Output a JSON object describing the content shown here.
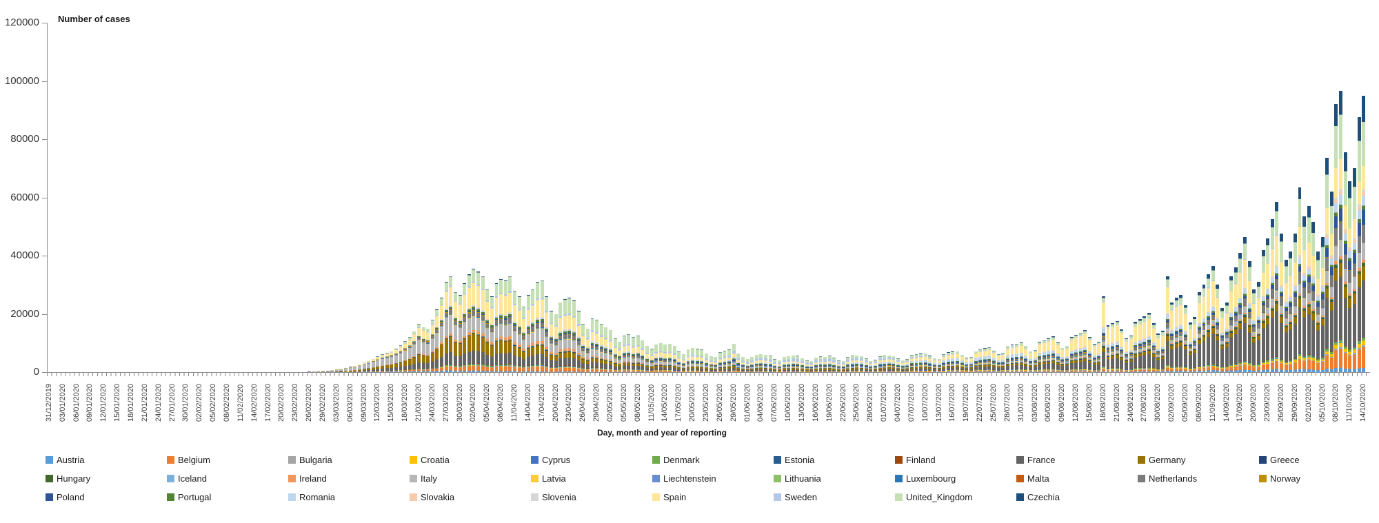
{
  "chart_data": {
    "type": "bar",
    "stacked": true,
    "ylabel": "Number of cases",
    "xlabel": "Day, month and year of reporting",
    "ylim": [
      0,
      120000
    ],
    "y_ticks": [
      0,
      20000,
      40000,
      60000,
      80000,
      100000,
      120000
    ],
    "grid": false,
    "legend_position": "bottom",
    "x_start_date": "31/12/2019",
    "x_end_date": "14/10/2020",
    "n_days": 289,
    "x_label_every_n_days": 3,
    "x_tick_labels": [
      "31/12/2019",
      "03/01/2020",
      "06/01/2020",
      "09/01/2020",
      "12/01/2020",
      "15/01/2020",
      "18/01/2020",
      "21/01/2020",
      "24/01/2020",
      "27/01/2020",
      "30/01/2020",
      "02/02/2020",
      "05/02/2020",
      "08/02/2020",
      "11/02/2020",
      "14/02/2020",
      "17/02/2020",
      "20/02/2020",
      "23/02/2020",
      "26/02/2020",
      "29/02/2020",
      "03/03/2020",
      "06/03/2020",
      "09/03/2020",
      "12/03/2020",
      "15/03/2020",
      "18/03/2020",
      "21/03/2020",
      "24/03/2020",
      "27/03/2020",
      "30/03/2020",
      "02/04/2020",
      "05/04/2020",
      "08/04/2020",
      "11/04/2020",
      "14/04/2020",
      "17/04/2020",
      "20/04/2020",
      "23/04/2020",
      "26/04/2020",
      "29/04/2020",
      "02/05/2020",
      "05/05/2020",
      "08/05/2020",
      "11/05/2020",
      "14/05/2020",
      "17/05/2020",
      "20/05/2020",
      "23/05/2020",
      "26/05/2020",
      "29/05/2020",
      "01/06/2020",
      "04/06/2020",
      "07/06/2020",
      "10/06/2020",
      "13/06/2020",
      "16/06/2020",
      "19/06/2020",
      "22/06/2020",
      "25/06/2020",
      "28/06/2020",
      "01/07/2020",
      "04/07/2020",
      "07/07/2020",
      "10/07/2020",
      "13/07/2020",
      "16/07/2020",
      "19/07/2020",
      "22/07/2020",
      "25/07/2020",
      "28/07/2020",
      "31/07/2020",
      "03/08/2020",
      "06/08/2020",
      "09/08/2020",
      "12/08/2020",
      "15/08/2020",
      "18/08/2020",
      "21/08/2020",
      "24/08/2020",
      "27/08/2020",
      "30/08/2020",
      "02/09/2020",
      "05/09/2020",
      "08/09/2020",
      "11/09/2020",
      "14/09/2020",
      "17/09/2020",
      "20/09/2020",
      "23/09/2020",
      "26/09/2020",
      "29/09/2020",
      "02/10/2020",
      "05/10/2020",
      "08/10/2020",
      "11/10/2020",
      "14/10/2020"
    ],
    "series_order": [
      "Austria",
      "Belgium",
      "Bulgaria",
      "Croatia",
      "Cyprus",
      "Denmark",
      "Estonia",
      "Finland",
      "France",
      "Germany",
      "Greece",
      "Hungary",
      "Iceland",
      "Ireland",
      "Italy",
      "Latvia",
      "Liechtenstein",
      "Lithuania",
      "Luxembourg",
      "Malta",
      "Netherlands",
      "Norway",
      "Poland",
      "Portugal",
      "Romania",
      "Slovakia",
      "Slovenia",
      "Spain",
      "Sweden",
      "United_Kingdom",
      "Czechia"
    ],
    "series_colors": {
      "Austria": "#5B9BD5",
      "Belgium": "#ED7D31",
      "Bulgaria": "#A5A5A5",
      "Croatia": "#FFC000",
      "Cyprus": "#4472C4",
      "Denmark": "#70AD47",
      "Estonia": "#255E91",
      "Finland": "#9E480E",
      "France": "#636363",
      "Germany": "#997300",
      "Greece": "#264478",
      "Hungary": "#43682B",
      "Iceland": "#7CAFDD",
      "Ireland": "#F1975A",
      "Italy": "#B7B7B7",
      "Latvia": "#FFCD33",
      "Liechtenstein": "#698ED0",
      "Lithuania": "#8CC168",
      "Luxembourg": "#2E75B6",
      "Malta": "#C55A11",
      "Netherlands": "#7B7B7B",
      "Norway": "#BF8F00",
      "Poland": "#2F5597",
      "Portugal": "#548235",
      "Romania": "#BDD7EE",
      "Slovakia": "#F8CBAD",
      "Slovenia": "#D6D6D6",
      "Spain": "#FFE699",
      "Sweden": "#B4C7E7",
      "United_Kingdom": "#C5E0B4",
      "Czechia": "#1F4E79"
    },
    "daily_totals": [
      0,
      0,
      0,
      0,
      0,
      0,
      0,
      0,
      0,
      0,
      0,
      0,
      0,
      0,
      0,
      0,
      0,
      0,
      0,
      0,
      0,
      0,
      0,
      0,
      0,
      0,
      0,
      0,
      0,
      0,
      0,
      0,
      0,
      0,
      0,
      0,
      0,
      0,
      0,
      0,
      0,
      0,
      0,
      0,
      0,
      0,
      0,
      0,
      0,
      0,
      0,
      0,
      0,
      0,
      30,
      60,
      100,
      160,
      230,
      330,
      430,
      560,
      700,
      900,
      1150,
      1450,
      1800,
      2200,
      2700,
      3300,
      3900,
      4600,
      5400,
      6100,
      6600,
      7200,
      8000,
      9200,
      10600,
      12000,
      14000,
      16500,
      15500,
      15000,
      18000,
      21500,
      25500,
      31000,
      33000,
      27500,
      26500,
      30500,
      33500,
      35500,
      34500,
      33000,
      28500,
      26000,
      30500,
      32000,
      31500,
      33000,
      28000,
      26000,
      22500,
      26500,
      28500,
      31000,
      31500,
      26000,
      21000,
      20000,
      24000,
      25000,
      25500,
      24500,
      21000,
      16500,
      15000,
      18500,
      18000,
      16500,
      15500,
      14500,
      11500,
      10500,
      12500,
      13000,
      12000,
      12500,
      11000,
      9000,
      8000,
      9500,
      10000,
      9500,
      9800,
      9000,
      7000,
      6200,
      7800,
      8300,
      8000,
      7700,
      6500,
      5500,
      5200,
      6800,
      7300,
      7800,
      9800,
      6500,
      5200,
      4500,
      5200,
      6000,
      6200,
      6000,
      5600,
      4400,
      4000,
      5300,
      5500,
      5800,
      5600,
      4800,
      4000,
      3800,
      5000,
      5400,
      5300,
      5600,
      4900,
      4000,
      3800,
      5200,
      5600,
      5800,
      5500,
      4700,
      3900,
      4200,
      5400,
      5600,
      5800,
      5500,
      4700,
      4100,
      4400,
      5900,
      6100,
      6300,
      6500,
      5600,
      4800,
      4600,
      6200,
      6800,
      7000,
      7200,
      6000,
      5000,
      5200,
      7200,
      7800,
      8200,
      8600,
      7400,
      6200,
      6600,
      8800,
      9400,
      9800,
      10200,
      8800,
      7200,
      7600,
      10400,
      11000,
      11600,
      12200,
      10200,
      8400,
      8800,
      12000,
      12800,
      13600,
      14400,
      12000,
      9600,
      10400,
      26000,
      16000,
      16800,
      17600,
      14600,
      11600,
      12600,
      17200,
      18200,
      19200,
      20400,
      16800,
      13200,
      14200,
      33000,
      24000,
      25500,
      26500,
      23000,
      17000,
      19000,
      27500,
      30000,
      33500,
      36500,
      30000,
      22000,
      24000,
      33000,
      36000,
      41000,
      46500,
      38000,
      28500,
      31000,
      42000,
      46000,
      52500,
      58500,
      47500,
      38500,
      41500,
      47500,
      63500,
      53500,
      57000,
      51500,
      41500,
      46500,
      73500,
      62000,
      92000,
      96500,
      75500,
      65500,
      70000,
      87500,
      95000
    ],
    "composition_anchors": [
      {
        "day": 54,
        "weights": {
          "Italy": 0.72,
          "France": 0.08,
          "Germany": 0.05,
          "Spain": 0.04,
          "United_Kingdom": 0.03,
          "Austria": 0.01,
          "Belgium": 0.01,
          "Netherlands": 0.01,
          "Norway": 0.01,
          "Denmark": 0.01,
          "Sweden": 0.01,
          "Greece": 0.01
        }
      },
      {
        "day": 75,
        "weights": {
          "Italy": 0.35,
          "Germany": 0.16,
          "Spain": 0.14,
          "France": 0.13,
          "United_Kingdom": 0.04,
          "Netherlands": 0.035,
          "Belgium": 0.03,
          "Austria": 0.025,
          "Norway": 0.015,
          "Denmark": 0.01,
          "Sweden": 0.01,
          "Portugal": 0.01,
          "Ireland": 0.01,
          "Luxembourg": 0.005,
          "Greece": 0.005,
          "Czechia": 0.005
        }
      },
      {
        "day": 93,
        "weights": {
          "Spain": 0.215,
          "Germany": 0.165,
          "Italy": 0.13,
          "France": 0.125,
          "United_Kingdom": 0.115,
          "Belgium": 0.045,
          "Netherlands": 0.04,
          "Ireland": 0.025,
          "Portugal": 0.02,
          "Austria": 0.015,
          "Sweden": 0.015,
          "Poland": 0.01,
          "Norway": 0.008,
          "Denmark": 0.008,
          "Romania": 0.008,
          "Czechia": 0.008,
          "Luxembourg": 0.004
        }
      },
      {
        "day": 110,
        "weights": {
          "United_Kingdom": 0.19,
          "Spain": 0.19,
          "Italy": 0.125,
          "France": 0.105,
          "Germany": 0.08,
          "Belgium": 0.05,
          "Netherlands": 0.04,
          "Ireland": 0.035,
          "Portugal": 0.025,
          "Sweden": 0.02,
          "Poland": 0.015,
          "Romania": 0.012,
          "Austria": 0.008,
          "Denmark": 0.006,
          "Czechia": 0.006
        }
      },
      {
        "day": 140,
        "weights": {
          "United_Kingdom": 0.29,
          "Spain": 0.13,
          "Italy": 0.075,
          "France": 0.07,
          "Sweden": 0.06,
          "Germany": 0.055,
          "Poland": 0.04,
          "Belgium": 0.03,
          "Romania": 0.025,
          "Portugal": 0.025,
          "Netherlands": 0.02,
          "Bulgaria": 0.01,
          "Ireland": 0.01,
          "Austria": 0.005,
          "Denmark": 0.005,
          "Czechia": 0.005
        }
      },
      {
        "day": 170,
        "weights": {
          "Sweden": 0.2,
          "United_Kingdom": 0.15,
          "Germany": 0.09,
          "Spain": 0.08,
          "Poland": 0.06,
          "Portugal": 0.06,
          "Romania": 0.06,
          "France": 0.06,
          "Italy": 0.045,
          "Belgium": 0.015,
          "Bulgaria": 0.015,
          "Czechia": 0.01,
          "Netherlands": 0.01,
          "Denmark": 0.01,
          "Croatia": 0.01,
          "Austria": 0.005
        }
      },
      {
        "day": 200,
        "weights": {
          "Spain": 0.2,
          "Romania": 0.13,
          "France": 0.1,
          "United_Kingdom": 0.07,
          "Germany": 0.06,
          "Poland": 0.05,
          "Belgium": 0.03,
          "Bulgaria": 0.03,
          "Portugal": 0.03,
          "Sweden": 0.03,
          "Italy": 0.03,
          "Czechia": 0.02,
          "Netherlands": 0.02,
          "Croatia": 0.02,
          "Luxembourg": 0.015,
          "Greece": 0.01,
          "Austria": 0.01
        }
      },
      {
        "day": 231,
        "weights": {
          "Spain": 0.33,
          "France": 0.17,
          "Germany": 0.055,
          "Romania": 0.055,
          "United_Kingdom": 0.045,
          "Poland": 0.035,
          "Italy": 0.03,
          "Belgium": 0.025,
          "Netherlands": 0.025,
          "Czechia": 0.02,
          "Croatia": 0.015,
          "Greece": 0.012,
          "Bulgaria": 0.01,
          "Austria": 0.01,
          "Portugal": 0.01,
          "Denmark": 0.008
        }
      },
      {
        "day": 255,
        "weights": {
          "France": 0.29,
          "Spain": 0.24,
          "United_Kingdom": 0.09,
          "Germany": 0.05,
          "Czechia": 0.045,
          "Italy": 0.04,
          "Romania": 0.04,
          "Netherlands": 0.04,
          "Belgium": 0.03,
          "Poland": 0.02,
          "Austria": 0.018,
          "Portugal": 0.015,
          "Hungary": 0.012,
          "Ireland": 0.01,
          "Croatia": 0.01,
          "Denmark": 0.008,
          "Greece": 0.008,
          "Sweden": 0.008
        }
      },
      {
        "day": 270,
        "weights": {
          "France": 0.26,
          "Spain": 0.17,
          "United_Kingdom": 0.145,
          "Czechia": 0.055,
          "Netherlands": 0.055,
          "Belgium": 0.045,
          "Germany": 0.045,
          "Italy": 0.045,
          "Romania": 0.035,
          "Poland": 0.025,
          "Austria": 0.018,
          "Hungary": 0.012,
          "Portugal": 0.012,
          "Croatia": 0.012,
          "Ireland": 0.01,
          "Denmark": 0.01,
          "Slovakia": 0.008
        }
      },
      {
        "day": 288,
        "weights": {
          "France": 0.21,
          "United_Kingdom": 0.16,
          "Czechia": 0.095,
          "Spain": 0.085,
          "Belgium": 0.075,
          "Netherlands": 0.065,
          "Italy": 0.06,
          "Poland": 0.055,
          "Germany": 0.05,
          "Romania": 0.035,
          "Croatia": 0.015,
          "Portugal": 0.015,
          "Slovakia": 0.015,
          "Austria": 0.015,
          "Hungary": 0.012,
          "Ireland": 0.012,
          "Denmark": 0.01,
          "Slovenia": 0.008,
          "Bulgaria": 0.008
        }
      }
    ]
  }
}
